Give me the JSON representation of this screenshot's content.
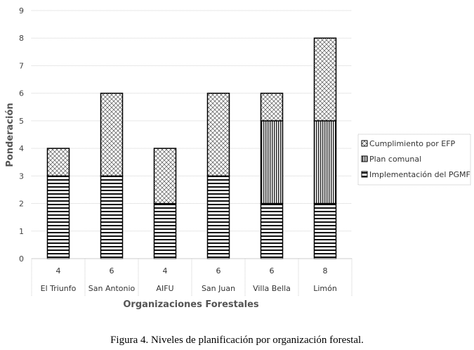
{
  "chart_data": {
    "type": "bar",
    "stacked": true,
    "categories": [
      "El Triunfo",
      "San Antonio",
      "AIFU",
      "San Juan",
      "Villa Bella",
      "Limón"
    ],
    "totals": [
      "4",
      "6",
      "4",
      "6",
      "6",
      "8"
    ],
    "series": [
      {
        "name": "Implementación del PGMF",
        "values": [
          3,
          3,
          2,
          3,
          2,
          2
        ],
        "pattern": "horizontal"
      },
      {
        "name": "Plan comunal",
        "values": [
          0,
          0,
          0,
          0,
          3,
          3
        ],
        "pattern": "vertical"
      },
      {
        "name": "Cumplimiento por EFP",
        "values": [
          1,
          3,
          2,
          3,
          1,
          3
        ],
        "pattern": "crosshatch"
      }
    ],
    "legend_order": [
      2,
      1,
      0
    ],
    "ylabel": "Ponderación",
    "xlabel": "Organizaciones Forestales",
    "ylim": [
      0,
      9
    ],
    "yticks": [
      "0",
      "1",
      "2",
      "3",
      "4",
      "5",
      "6",
      "7",
      "8",
      "9"
    ],
    "grid": true,
    "legend_position": "right"
  },
  "caption": "Figura 4. Niveles de planificación por organización forestal."
}
